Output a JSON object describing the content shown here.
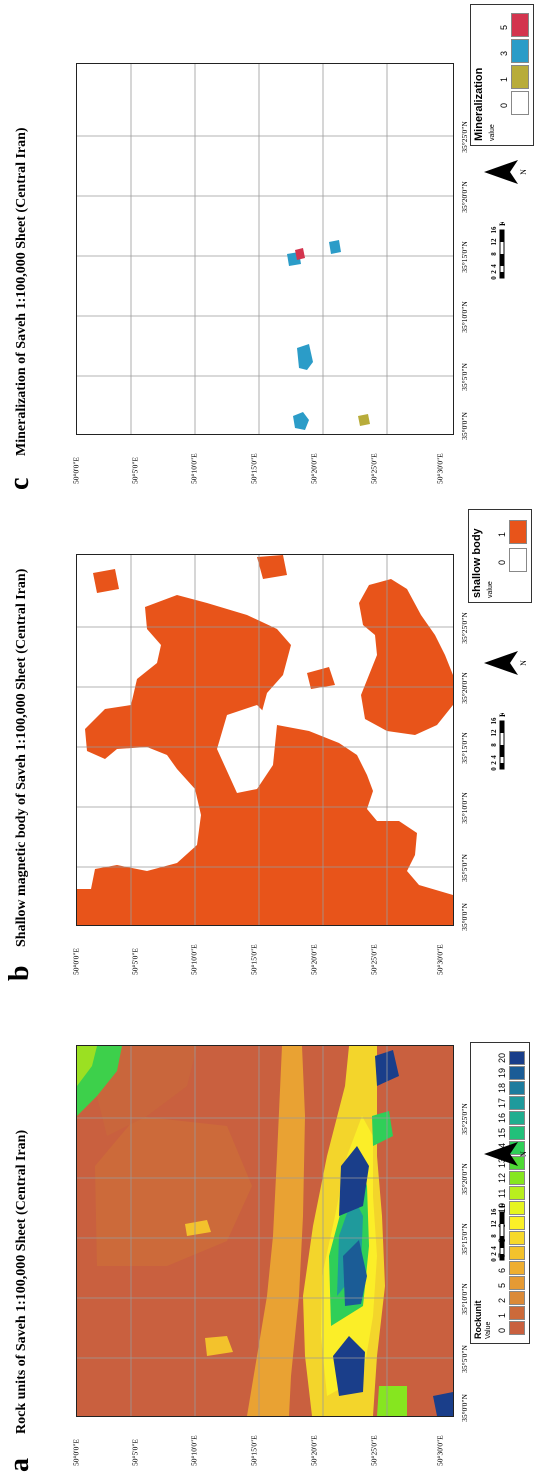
{
  "panels": [
    {
      "id": "a",
      "label": "a",
      "title": "Rock units  of Saveh 1:100,000 Sheet (Central Iran)",
      "lon_labels": [
        "50°0'0\"E",
        "50°5'0\"E",
        "50°10'0\"E",
        "50°15'0\"E",
        "50°20'0\"E",
        "50°25'0\"E",
        "50°30'0\"E"
      ],
      "lat_labels": [
        "35°0'0\"N",
        "35°5'0\"N",
        "35°10'0\"N",
        "35°15'0\"N",
        "35°20'0\"N",
        "35°25'0\"N"
      ],
      "legend": {
        "title": "Rockunit",
        "subtitle": "Value",
        "classes": [
          {
            "value": "0",
            "color": "#c9603f"
          },
          {
            "value": "1",
            "color": "#cc6a3a"
          },
          {
            "value": "2",
            "color": "#db8a38"
          },
          {
            "value": "5",
            "color": "#e59a34"
          },
          {
            "value": "6",
            "color": "#eeae30"
          },
          {
            "value": "7",
            "color": "#f3c22c"
          },
          {
            "value": "8",
            "color": "#f7d92a"
          },
          {
            "value": "9",
            "color": "#fbf028"
          },
          {
            "value": "10",
            "color": "#e6f51f"
          },
          {
            "value": "11",
            "color": "#b9ef1e"
          },
          {
            "value": "12",
            "color": "#86e61f"
          },
          {
            "value": "13",
            "color": "#4ed935"
          },
          {
            "value": "14",
            "color": "#2fcf58"
          },
          {
            "value": "15",
            "color": "#22c07a"
          },
          {
            "value": "16",
            "color": "#1fae8f"
          },
          {
            "value": "17",
            "color": "#1f9a9c"
          },
          {
            "value": "18",
            "color": "#1d7c9e"
          },
          {
            "value": "19",
            "color": "#1b5c96"
          },
          {
            "value": "20",
            "color": "#1a3e8a"
          }
        ]
      },
      "scale": {
        "ticks": [
          "0",
          "2",
          "4",
          "8",
          "12",
          "16"
        ],
        "unit": "Km"
      },
      "north": "N"
    },
    {
      "id": "b",
      "label": "b",
      "title": "Shallow magnetic body of Saveh 1:100,000 Sheet (Central Iran)",
      "lon_labels": [
        "50°0'0\"E",
        "50°5'0\"E",
        "50°10'0\"E",
        "50°15'0\"E",
        "50°20'0\"E",
        "50°25'0\"E",
        "50°30'0\"E"
      ],
      "lat_labels": [
        "35°0'0\"N",
        "35°5'0\"N",
        "35°10'0\"N",
        "35°15'0\"N",
        "35°20'0\"N",
        "35°25'0\"N"
      ],
      "legend": {
        "title": "shallow body",
        "subtitle": "value",
        "classes": [
          {
            "value": "0",
            "color": "#ffffff"
          },
          {
            "value": "1",
            "color": "#e8541a"
          }
        ]
      },
      "scale": {
        "ticks": [
          "0",
          "2",
          "4",
          "8",
          "12",
          "16"
        ],
        "unit": "Km"
      },
      "north": "N"
    },
    {
      "id": "c",
      "label": "c",
      "title": "Mineralization of Saveh 1:100,000 Sheet (Central Iran)",
      "lon_labels": [
        "50°0'0\"E",
        "50°5'0\"E",
        "50°10'0\"E",
        "50°15'0\"E",
        "50°20'0\"E",
        "50°25'0\"E",
        "50°30'0\"E"
      ],
      "lat_labels": [
        "35°0'0\"N",
        "35°5'0\"N",
        "35°10'0\"N",
        "35°15'0\"N",
        "35°20'0\"N",
        "35°25'0\"N"
      ],
      "legend": {
        "title": "Mineralization",
        "subtitle": "value",
        "classes": [
          {
            "value": "0",
            "color": "#ffffff"
          },
          {
            "value": "1",
            "color": "#b8ac3a"
          },
          {
            "value": "3",
            "color": "#2b9cc8"
          },
          {
            "value": "5",
            "color": "#d3344e"
          }
        ]
      },
      "scale": {
        "ticks": [
          "0",
          "2",
          "4",
          "8",
          "12",
          "16"
        ],
        "unit": "Km"
      },
      "north": "N"
    }
  ]
}
